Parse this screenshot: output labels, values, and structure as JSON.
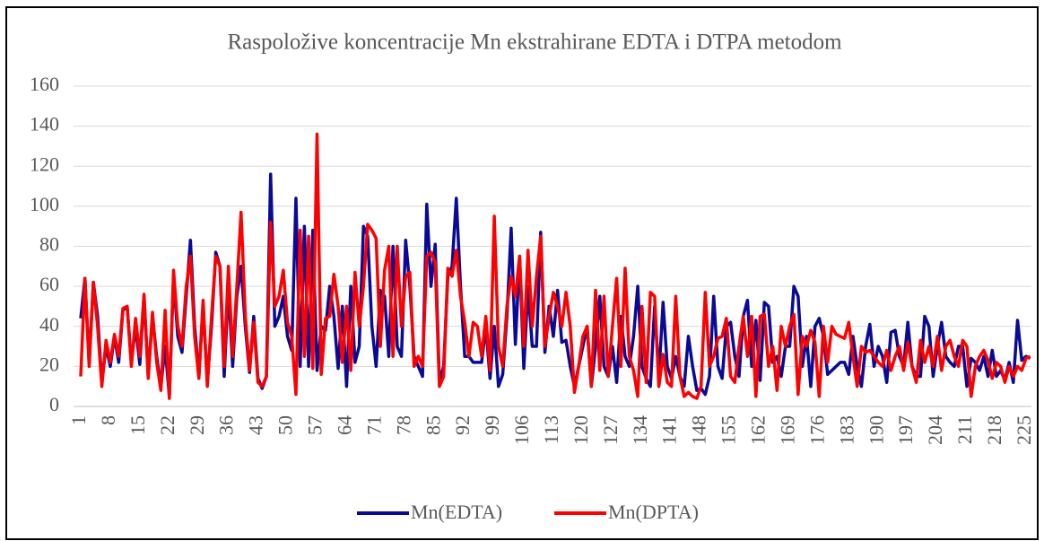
{
  "chart_data": {
    "type": "line",
    "title": "Raspoložive koncentracije Mn ekstrahirane EDTA i DTPA metodom",
    "categories": [
      1,
      null,
      null,
      null,
      null,
      null,
      null,
      8,
      null,
      null,
      null,
      null,
      null,
      null,
      15,
      null,
      null,
      null,
      null,
      null,
      null,
      22,
      null,
      null,
      null,
      null,
      null,
      null,
      29,
      null,
      null,
      null,
      null,
      null,
      null,
      36,
      null,
      null,
      null,
      null,
      null,
      null,
      43,
      null,
      null,
      null,
      null,
      null,
      null,
      50,
      null,
      null,
      null,
      null,
      null,
      null,
      57,
      null,
      null,
      null,
      null,
      null,
      null,
      64,
      null,
      null,
      null,
      null,
      null,
      null,
      71,
      null,
      null,
      null,
      null,
      null,
      null,
      78,
      null,
      null,
      null,
      null,
      null,
      null,
      85,
      null,
      null,
      null,
      null,
      null,
      null,
      92,
      null,
      null,
      null,
      null,
      null,
      null,
      99,
      null,
      null,
      null,
      null,
      null,
      null,
      106,
      null,
      null,
      null,
      null,
      null,
      null,
      113,
      null,
      null,
      null,
      null,
      null,
      null,
      120,
      null,
      null,
      null,
      null,
      null,
      null,
      127,
      null,
      null,
      null,
      null,
      null,
      null,
      134,
      null,
      null,
      null,
      null,
      null,
      null,
      141,
      null,
      null,
      null,
      null,
      null,
      null,
      148,
      null,
      null,
      null,
      null,
      null,
      null,
      155,
      null,
      null,
      null,
      null,
      null,
      null,
      162,
      null,
      null,
      null,
      null,
      null,
      null,
      169,
      null,
      null,
      null,
      null,
      null,
      null,
      176,
      null,
      null,
      null,
      null,
      null,
      null,
      183,
      null,
      null,
      null,
      null,
      null,
      null,
      190,
      null,
      null,
      null,
      null,
      null,
      null,
      197,
      null,
      null,
      null,
      null,
      null,
      null,
      204,
      null,
      null,
      null,
      null,
      null,
      null,
      211,
      null,
      null,
      null,
      null,
      null,
      null,
      218,
      null,
      null,
      null,
      null,
      null,
      null,
      225,
      null
    ],
    "series": [
      {
        "name": "Mn(EDTA)",
        "color": "#0a0a96",
        "values": [
          44,
          64,
          22,
          62,
          45,
          12,
          30,
          20,
          35,
          22,
          48,
          50,
          22,
          40,
          21,
          55,
          15,
          45,
          25,
          10,
          30,
          5,
          65,
          35,
          27,
          55,
          83,
          40,
          15,
          50,
          12,
          40,
          77,
          70,
          15,
          60,
          20,
          55,
          70,
          40,
          17,
          45,
          14,
          9,
          15,
          116,
          40,
          45,
          55,
          35,
          28,
          104,
          20,
          90,
          20,
          88,
          18,
          40,
          38,
          60,
          45,
          19,
          50,
          10,
          60,
          22,
          30,
          90,
          85,
          40,
          20,
          58,
          55,
          25,
          80,
          30,
          25,
          83,
          60,
          25,
          20,
          15,
          101,
          60,
          81,
          12,
          20,
          65,
          70,
          104,
          60,
          25,
          25,
          22,
          22,
          22,
          40,
          14,
          40,
          10,
          16,
          45,
          89,
          31,
          75,
          19,
          60,
          30,
          30,
          87,
          27,
          50,
          35,
          58,
          32,
          33,
          20,
          10,
          20,
          30,
          40,
          10,
          30,
          55,
          20,
          15,
          30,
          12,
          45,
          25,
          20,
          35,
          60,
          20,
          14,
          10,
          50,
          15,
          52,
          20,
          14,
          25,
          15,
          10,
          35,
          20,
          8,
          9,
          6,
          15,
          55,
          20,
          14,
          40,
          42,
          25,
          15,
          45,
          53,
          20,
          43,
          13,
          52,
          50,
          22,
          25,
          15,
          30,
          30,
          60,
          55,
          20,
          35,
          10,
          40,
          44,
          35,
          16,
          18,
          20,
          22,
          22,
          16,
          35,
          20,
          10,
          30,
          41,
          20,
          30,
          25,
          12,
          37,
          38,
          25,
          20,
          42,
          20,
          15,
          15,
          45,
          40,
          15,
          30,
          42,
          25,
          22,
          20,
          30,
          30,
          10,
          24,
          22,
          18,
          25,
          15,
          28,
          15,
          18,
          13,
          22,
          12,
          43,
          23,
          25,
          24
        ]
      },
      {
        "name": "Mn(DPTA)",
        "color": "#ff0000",
        "values": [
          15,
          64,
          20,
          62,
          40,
          10,
          33,
          22,
          36,
          25,
          49,
          50,
          20,
          44,
          25,
          56,
          14,
          47,
          22,
          8,
          48,
          4,
          68,
          40,
          30,
          60,
          75,
          35,
          14,
          53,
          10,
          45,
          75,
          70,
          20,
          70,
          25,
          60,
          97,
          45,
          18,
          42,
          12,
          10,
          15,
          92,
          50,
          55,
          68,
          42,
          35,
          6,
          88,
          25,
          85,
          19,
          136,
          16,
          44,
          45,
          66,
          50,
          22,
          50,
          18,
          67,
          40,
          60,
          91,
          88,
          84,
          30,
          68,
          80,
          25,
          80,
          40,
          65,
          67,
          20,
          25,
          20,
          75,
          77,
          72,
          10,
          15,
          69,
          65,
          78,
          55,
          42,
          25,
          42,
          40,
          25,
          45,
          18,
          95,
          30,
          20,
          50,
          65,
          55,
          75,
          30,
          78,
          40,
          65,
          85,
          30,
          45,
          57,
          50,
          40,
          57,
          40,
          7,
          20,
          35,
          40,
          10,
          58,
          18,
          55,
          15,
          40,
          64,
          20,
          69,
          25,
          18,
          5,
          50,
          12,
          57,
          55,
          10,
          26,
          12,
          10,
          55,
          15,
          5,
          7,
          5,
          4,
          10,
          57,
          20,
          25,
          34,
          35,
          44,
          15,
          12,
          30,
          45,
          25,
          45,
          5,
          45,
          46,
          20,
          30,
          8,
          40,
          30,
          40,
          46,
          6,
          35,
          30,
          38,
          32,
          5,
          40,
          22,
          40,
          36,
          35,
          34,
          42,
          25,
          10,
          30,
          27,
          28,
          25,
          22,
          20,
          28,
          18,
          25,
          30,
          18,
          32,
          20,
          12,
          33,
          22,
          30,
          20,
          35,
          18,
          30,
          33,
          25,
          20,
          33,
          30,
          5,
          20,
          25,
          28,
          23,
          14,
          22,
          20,
          12,
          20,
          15,
          20,
          18,
          24,
          25
        ]
      }
    ],
    "ylim": [
      0,
      160
    ],
    "yticks": [
      0,
      20,
      40,
      60,
      80,
      100,
      120,
      140,
      160
    ],
    "grid": true,
    "legend": "bottom"
  }
}
